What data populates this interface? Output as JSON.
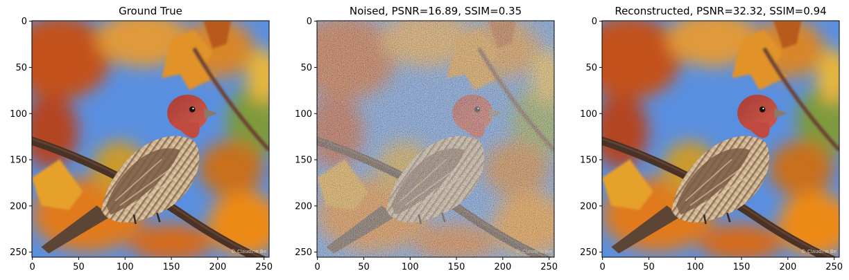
{
  "figure": {
    "panels": [
      {
        "id": "ground-truth",
        "title": "Ground True",
        "xticks": [
          "0",
          "50",
          "100",
          "150",
          "200",
          "250"
        ],
        "yticks": [
          "0",
          "50",
          "100",
          "150",
          "200",
          "250"
        ],
        "noise": 0,
        "credit": "© Claudine Be"
      },
      {
        "id": "noised",
        "title": "Noised, PSNR=16.89, SSIM=0.35",
        "xticks": [
          "0",
          "50",
          "100",
          "150",
          "200",
          "250"
        ],
        "yticks": [
          "0",
          "50",
          "100",
          "150",
          "200",
          "250"
        ],
        "noise": 1,
        "credit": "© Claudine Be"
      },
      {
        "id": "reconstructed",
        "title": "Reconstructed, PSNR=32.32, SSIM=0.94",
        "xticks": [
          "0",
          "50",
          "100",
          "150",
          "200",
          "250"
        ],
        "yticks": [
          "0",
          "50",
          "100",
          "150",
          "200",
          "250"
        ],
        "noise": 0,
        "credit": "© Claudine Be"
      }
    ],
    "image_size": 256,
    "tick_values": [
      0,
      50,
      100,
      150,
      200,
      250
    ],
    "colors": {
      "sky": "#5a8fe0",
      "leaf_orange": "#e07a1c",
      "leaf_red": "#b5401f",
      "leaf_yellow": "#e8b030",
      "leaf_green": "#8a9a3a",
      "branch": "#4a3226",
      "bird_head": "#b84a3e",
      "bird_body": "#9c8064",
      "bird_belly": "#d9c6a8"
    }
  }
}
